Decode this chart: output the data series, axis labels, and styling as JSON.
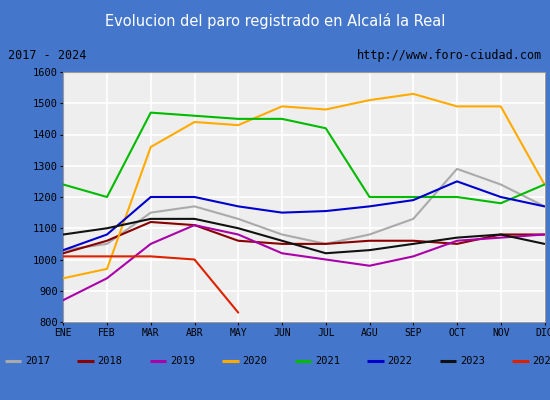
{
  "title": "Evolucion del paro registrado en Alcalá la Real",
  "subtitle_left": "2017 - 2024",
  "subtitle_right": "http://www.foro-ciudad.com",
  "ylim": [
    800,
    1600
  ],
  "yticks": [
    800,
    900,
    1000,
    1100,
    1200,
    1300,
    1400,
    1500,
    1600
  ],
  "months": [
    "ENE",
    "FEB",
    "MAR",
    "ABR",
    "MAY",
    "JUN",
    "JUL",
    "AGU",
    "SEP",
    "OCT",
    "NOV",
    "DIC"
  ],
  "series": {
    "2017": {
      "color": "#aaaaaa",
      "data": [
        1030,
        1050,
        1150,
        1170,
        1130,
        1080,
        1050,
        1080,
        1130,
        1290,
        1240,
        1170
      ]
    },
    "2018": {
      "color": "#880000",
      "data": [
        1020,
        1060,
        1120,
        1110,
        1060,
        1050,
        1050,
        1060,
        1060,
        1050,
        1080,
        1080
      ]
    },
    "2019": {
      "color": "#aa00aa",
      "data": [
        870,
        940,
        1050,
        1110,
        1080,
        1020,
        1000,
        980,
        1010,
        1060,
        1070,
        1080
      ]
    },
    "2020": {
      "color": "#ffaa00",
      "data": [
        940,
        970,
        1360,
        1440,
        1430,
        1490,
        1480,
        1510,
        1530,
        1490,
        1490,
        1240
      ]
    },
    "2021": {
      "color": "#00bb00",
      "data": [
        1240,
        1200,
        1470,
        1460,
        1450,
        1450,
        1420,
        1200,
        1200,
        1200,
        1180,
        1240
      ]
    },
    "2022": {
      "color": "#0000cc",
      "data": [
        1030,
        1080,
        1200,
        1200,
        1170,
        1150,
        1155,
        1170,
        1190,
        1250,
        1200,
        1170
      ]
    },
    "2023": {
      "color": "#111111",
      "data": [
        1080,
        1100,
        1130,
        1130,
        1100,
        1060,
        1020,
        1030,
        1050,
        1070,
        1080,
        1050
      ]
    },
    "2024": {
      "color": "#dd2200",
      "data": [
        1010,
        1010,
        1010,
        1000,
        830,
        null,
        null,
        null,
        null,
        null,
        null,
        null
      ]
    }
  },
  "title_bg": "#5588cc",
  "title_color": "#ffffff",
  "plot_bg": "#eeeeee",
  "grid_color": "#ffffff",
  "legend_border": "#aaaaaa",
  "outer_border": "#4477cc"
}
